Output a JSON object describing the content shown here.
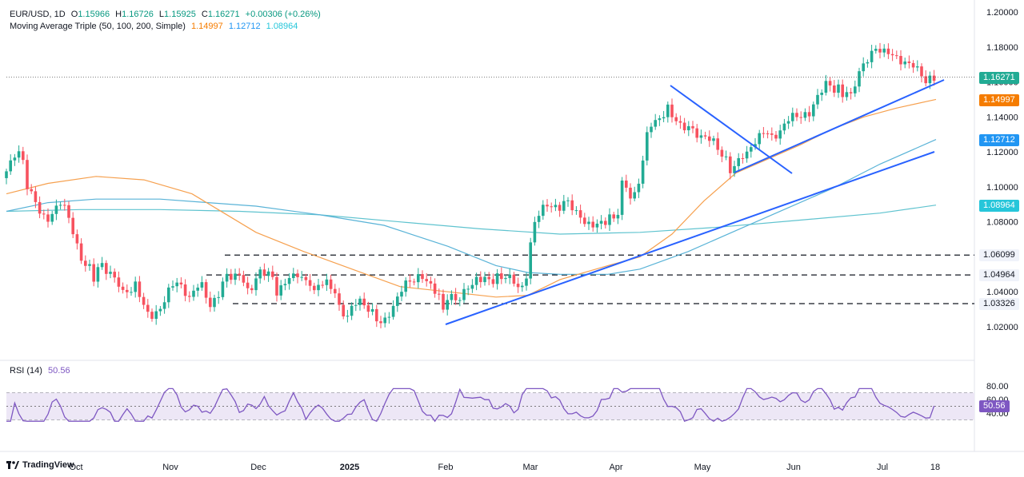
{
  "header": {
    "symbol": "EUR/USD, 1D",
    "open_label": "O",
    "open": "1.15966",
    "high_label": "H",
    "high": "1.16726",
    "low_label": "L",
    "low": "1.15925",
    "close_label": "C",
    "close": "1.16271",
    "change": "+0.00306 (+0.26%)",
    "ma_title": "Moving Average Triple (50, 100, 200, Simple)",
    "ma50": "1.14997",
    "ma100": "1.12712",
    "ma200": "1.08964"
  },
  "rsi_header": {
    "title": "RSI (14)",
    "value": "50.56"
  },
  "colors": {
    "up": "#22ab94",
    "down": "#f7525f",
    "ma50": "#f6a04e",
    "ma100": "#59b3d7",
    "ma200": "#5fc3cf",
    "trend": "#2962ff",
    "rsi": "#7e57c2",
    "rsi_band": "#ede7f6"
  },
  "price_axis": [
    "1.20000",
    "1.18000",
    "1.16000",
    "1.14000",
    "1.12000",
    "1.10000",
    "1.08000",
    "1.06000",
    "1.04000",
    "1.02000"
  ],
  "price_tags": [
    {
      "value": "1.16271",
      "color": "#22ab94"
    },
    {
      "value": "1.14997",
      "color": "#f57c00"
    },
    {
      "value": "1.12712",
      "color": "#2196f3"
    },
    {
      "value": "1.08964",
      "color": "#26c6da"
    },
    {
      "value": "1.06099",
      "color": "#f0f3fa"
    },
    {
      "value": "1.04964",
      "color": "#f0f3fa"
    },
    {
      "value": "1.03326",
      "color": "#f0f3fa"
    }
  ],
  "rsi_axis": [
    "80.00",
    "60.00",
    "40.00"
  ],
  "rsi_tag": "50.56",
  "time_axis": [
    "Oct",
    "Nov",
    "Dec",
    "2025",
    "Feb",
    "Mar",
    "Apr",
    "May",
    "Jun",
    "Jul",
    "18"
  ],
  "logo": "TradingView",
  "chart_data": {
    "type": "line",
    "title": "EUR/USD, 1D",
    "ylim": [
      1.0,
      1.2
    ],
    "horizontal_levels": [
      1.06099,
      1.04964,
      1.03326
    ],
    "last_close": 1.16271,
    "series": [
      {
        "name": "MA 50",
        "last": 1.14997
      },
      {
        "name": "MA 100",
        "last": 1.12712
      },
      {
        "name": "MA 200",
        "last": 1.08964
      },
      {
        "name": "RSI (14)",
        "last": 50.56
      }
    ]
  }
}
